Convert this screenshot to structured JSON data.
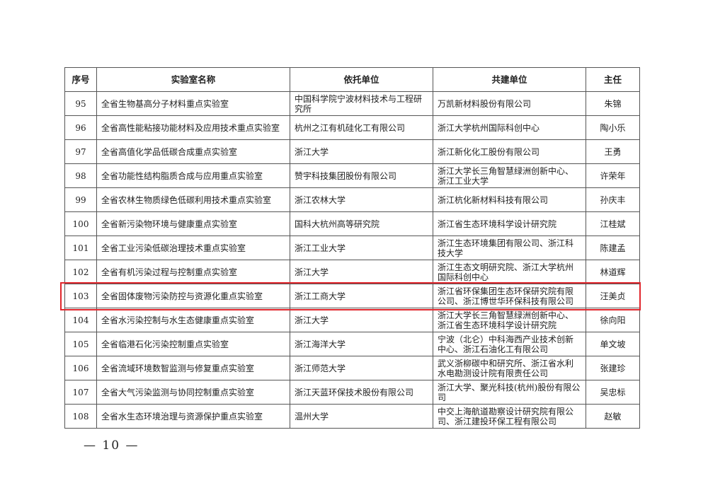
{
  "headers": [
    "序号",
    "实验室名称",
    "依托单位",
    "共建单位",
    "主任"
  ],
  "rows": [
    {
      "no": "95",
      "name": "全省生物基高分子材料重点实验室",
      "host": "中国科学院宁波材料技术与工程研究所",
      "partner": "万凯新材料股份有限公司",
      "director": "朱锦"
    },
    {
      "no": "96",
      "name": "全省高性能粘接功能材料及应用技术重点实验室",
      "host": "杭州之江有机硅化工有限公司",
      "partner": "浙江大学杭州国际科创中心",
      "director": "陶小乐"
    },
    {
      "no": "97",
      "name": "全省高值化学品低碳合成重点实验室",
      "host": "浙江大学",
      "partner": "浙江新化化工股份有限公司",
      "director": "王勇"
    },
    {
      "no": "98",
      "name": "全省功能性结构脂质合成与应用重点实验室",
      "host": "赞宇科技集团股份有限公司",
      "partner": "浙江大学长三角智慧绿洲创新中心、浙江工业大学",
      "director": "许荣年"
    },
    {
      "no": "99",
      "name": "全省农林生物质绿色低碳利用技术重点实验室",
      "host": "浙江农林大学",
      "partner": "浙江杭化新材料科技有限公司",
      "director": "孙庆丰"
    },
    {
      "no": "100",
      "name": "全省新污染物环境与健康重点实验室",
      "host": "国科大杭州高等研究院",
      "partner": "浙江省生态环境科学设计研究院",
      "director": "江桂斌"
    },
    {
      "no": "101",
      "name": "全省工业污染低碳治理技术重点实验室",
      "host": "浙江工业大学",
      "partner": "浙江生态环境集团有限公司、浙江科技大学",
      "director": "陈建孟"
    },
    {
      "no": "102",
      "name": "全省有机污染过程与控制重点实验室",
      "host": "浙江大学",
      "partner": "浙江生态文明研究院、浙江大学杭州国际科创中心",
      "director": "林道辉"
    },
    {
      "no": "103",
      "name": "全省固体废物污染防控与资源化重点实验室",
      "host": "浙江工商大学",
      "partner": "浙江省环保集团生态环保研究院有限公司、浙江博世华环保科技有限公司",
      "director": "汪美贞"
    },
    {
      "no": "104",
      "name": "全省水污染控制与水生态健康重点实验室",
      "host": "浙江大学",
      "partner": "浙江大学长三角智慧绿洲创新中心、浙江省生态环境科学设计研究院",
      "director": "徐向阳"
    },
    {
      "no": "105",
      "name": "全省临港石化污染控制重点实验室",
      "host": "浙江海洋大学",
      "partner": "宁波（北仑）中科海西产业技术创新中心、浙江石油化工有限公司",
      "director": "单文坡"
    },
    {
      "no": "106",
      "name": "全省流域环境数智监测与修复重点实验室",
      "host": "浙江师范大学",
      "partner": "武义浙柳碳中和研究所、浙江省水利水电勘测设计院有限责任公司",
      "director": "张建珍"
    },
    {
      "no": "107",
      "name": "全省大气污染监测与协同控制重点实验室",
      "host": "浙江天蓝环保技术股份有限公司",
      "partner": "浙江大学、聚光科技(杭州)股份有限公司",
      "director": "吴忠标"
    },
    {
      "no": "108",
      "name": "全省水生态环境治理与资源保护重点实验室",
      "host": "温州大学",
      "partner": "中交上海航道勘察设计研究院有限公司、浙江建投环保工程有限公司",
      "director": "赵敏"
    }
  ],
  "highlight_color": "#e0262c",
  "page_number": "— 10 —"
}
